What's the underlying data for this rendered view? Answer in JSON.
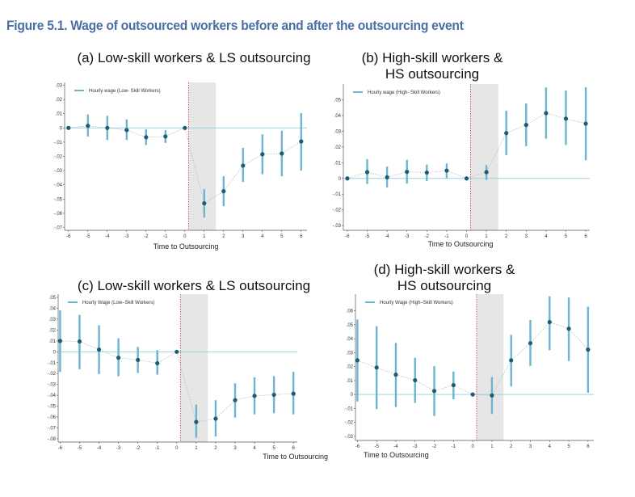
{
  "figure_title": "Figure 5.1. Wage of outsourced workers before and after the outsourcing event",
  "colors": {
    "title": "#4a6fa5",
    "ci": "#6cb4d0",
    "point": "#1b5e74",
    "zero_line": "#9fd0e0",
    "event_line": "#c0392b",
    "shade": "#e6e6e6",
    "connector": "#bbbbbb"
  },
  "chart_data": [
    {
      "type": "scatter",
      "panel_title": "(a) Low-skill workers & LS outsourcing",
      "legend": "Hourly wage (Low- Skill Workers)",
      "xlabel": "Time to Outsourcing",
      "x_ticks": [
        "-6",
        "-5",
        "-4",
        "-3",
        "-2",
        "-1",
        "0",
        "1",
        "2",
        "3",
        "4",
        "5",
        "6"
      ],
      "y_ticks": [
        ".03",
        ".02",
        ".01",
        "0",
        "-.01",
        "-.02",
        "-.03",
        "-.04",
        "-.05",
        "-.06",
        "-.07"
      ],
      "y_tick_values": [
        0.03,
        0.02,
        0.01,
        0,
        -0.01,
        -0.02,
        -0.03,
        -0.04,
        -0.05,
        -0.06,
        -0.07
      ],
      "ylim": [
        -0.072,
        0.032
      ],
      "xlim": [
        -6.2,
        6.3
      ],
      "x": [
        -6,
        -5,
        -4,
        -3,
        -2,
        -1,
        0,
        1,
        2,
        3,
        4,
        5,
        6
      ],
      "y": [
        0,
        0.0015,
        0,
        -0.0015,
        -0.0065,
        -0.006,
        0,
        -0.053,
        -0.0445,
        -0.0265,
        -0.0185,
        -0.018,
        -0.0095
      ],
      "ci_low": [
        0,
        -0.006,
        -0.0085,
        -0.0085,
        -0.012,
        -0.0105,
        0,
        -0.063,
        -0.055,
        -0.038,
        -0.0325,
        -0.034,
        -0.03
      ],
      "ci_high": [
        0,
        0.0095,
        0.0085,
        0.006,
        -0.001,
        -0.0015,
        0,
        -0.043,
        -0.034,
        -0.014,
        -0.0045,
        -0.002,
        0.0105
      ]
    },
    {
      "type": "scatter",
      "panel_title": "(b) High-skill workers & HS outsourcing",
      "legend": "Hourly wage (High- Skill Workers)",
      "xlabel": "Time to Outsourcing",
      "x_ticks": [
        "-6",
        "-5",
        "-4",
        "-3",
        "-2",
        "-1",
        "0",
        "1",
        "2",
        "3",
        "4",
        "5",
        "6"
      ],
      "y_ticks": [
        ".05",
        ".04",
        ".03",
        ".02",
        ".01",
        "0",
        "-.01",
        "-.02",
        "-.03"
      ],
      "y_tick_values": [
        0.05,
        0.04,
        0.03,
        0.02,
        0.01,
        0,
        -0.01,
        -0.02,
        -0.03
      ],
      "ylim": [
        -0.033,
        0.06
      ],
      "xlim": [
        -6.2,
        6.2
      ],
      "x": [
        -6,
        -5,
        -4,
        -3,
        -2,
        -1,
        0,
        1,
        2,
        3,
        4,
        5,
        6
      ],
      "y": [
        0,
        0.004,
        0.0007,
        0.0042,
        0.0037,
        0.005,
        0,
        0.004,
        0.0288,
        0.034,
        0.0415,
        0.038,
        0.0348
      ],
      "ci_low": [
        0,
        -0.0035,
        -0.0057,
        -0.0033,
        -0.0017,
        0,
        0,
        -0.001,
        0.0147,
        0.0205,
        0.0253,
        0.0213,
        0.0115
      ],
      "ci_high": [
        0,
        0.0122,
        0.0075,
        0.0118,
        0.0088,
        0.0095,
        0,
        0.0085,
        0.043,
        0.0477,
        0.0578,
        0.0558,
        0.058
      ]
    },
    {
      "type": "scatter",
      "panel_title": "(c) Low-skill workers & LS outsourcing",
      "legend": "Hourly Wage (Low–Skill Workers)",
      "xlabel": "Time to Outsourcing",
      "x_ticks": [
        "-6",
        "-5",
        "-4",
        "-3",
        "-2",
        "-1",
        "0",
        "1",
        "2",
        "3",
        "4",
        "5",
        "6"
      ],
      "y_ticks": [
        ".05",
        ".04",
        ".03",
        ".02",
        ".01",
        "0",
        "-.01",
        "-.02",
        "-.03",
        "-.04",
        "-.05",
        "-.06",
        "-.07",
        "-.08"
      ],
      "y_tick_values": [
        0.05,
        0.04,
        0.03,
        0.02,
        0.01,
        0,
        -0.01,
        -0.02,
        -0.03,
        -0.04,
        -0.05,
        -0.06,
        -0.07,
        -0.08
      ],
      "ylim": [
        -0.083,
        0.053
      ],
      "xlim": [
        -6.1,
        6.2
      ],
      "x": [
        -6,
        -5,
        -4,
        -3,
        -2,
        -1,
        0,
        1,
        2,
        3,
        4,
        5,
        6
      ],
      "y": [
        0.01,
        0.0095,
        0.002,
        -0.0055,
        -0.0075,
        -0.0105,
        0,
        -0.0645,
        -0.0615,
        -0.0445,
        -0.0405,
        -0.0395,
        -0.0385
      ],
      "ci_low": [
        -0.0185,
        -0.016,
        -0.0205,
        -0.0225,
        -0.0195,
        -0.021,
        0,
        -0.079,
        -0.078,
        -0.0605,
        -0.0575,
        -0.0565,
        -0.0575
      ],
      "ci_high": [
        0.038,
        0.034,
        0.0245,
        0.0125,
        0.0045,
        0.0015,
        0,
        -0.0485,
        -0.0445,
        -0.029,
        -0.0235,
        -0.0225,
        -0.0185
      ]
    },
    {
      "type": "scatter",
      "panel_title": "(d) High-skill workers & HS outsourcing",
      "legend": "Hourly Wage (High–Skill Workers)",
      "xlabel": "Time to Outsourcing",
      "x_ticks": [
        "-6",
        "-5",
        "-4",
        "-3",
        "-2",
        "-1",
        "0",
        "1",
        "2",
        "3",
        "4",
        "5",
        "6"
      ],
      "y_ticks": [
        ".06",
        ".05",
        ".04",
        ".03",
        ".02",
        ".01",
        "0",
        "-.01",
        "-.02",
        "-.03"
      ],
      "y_tick_values": [
        0.06,
        0.05,
        0.04,
        0.03,
        0.02,
        0.01,
        0,
        -0.01,
        -0.02,
        -0.03
      ],
      "ylim": [
        -0.033,
        0.072
      ],
      "xlim": [
        -6.1,
        6.3
      ],
      "x": [
        -6,
        -5,
        -4,
        -3,
        -2,
        -1,
        0,
        1,
        2,
        3,
        4,
        5,
        6
      ],
      "y": [
        0.0245,
        0.0193,
        0.0142,
        0.0102,
        0.0025,
        0.0067,
        0,
        -0.0007,
        0.0245,
        0.0368,
        0.052,
        0.0472,
        0.0322
      ],
      "ci_low": [
        -0.005,
        -0.0105,
        -0.009,
        -0.006,
        -0.0155,
        -0.0035,
        0,
        -0.014,
        0.0058,
        0.0205,
        0.0318,
        0.024,
        0.0012
      ],
      "ci_high": [
        0.0538,
        0.049,
        0.037,
        0.0263,
        0.0203,
        0.0165,
        0,
        0.0125,
        0.0428,
        0.0535,
        0.0705,
        0.0695,
        0.063
      ]
    }
  ]
}
